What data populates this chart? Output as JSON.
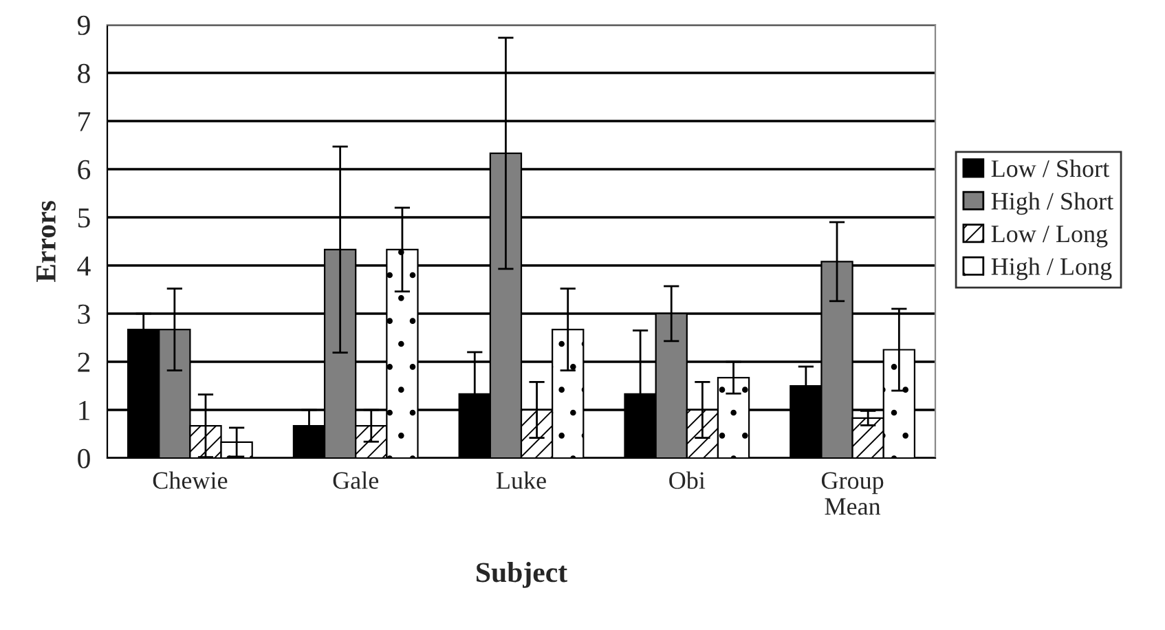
{
  "chart_data": {
    "type": "bar",
    "xlabel": "Subject",
    "ylabel": "Errors",
    "categories": [
      "Chewie",
      "Gale",
      "Luke",
      "Obi",
      "Group\nMean"
    ],
    "series": [
      {
        "name": "Low / Short",
        "color": "#000000",
        "values": [
          2.67,
          0.67,
          1.33,
          1.33,
          1.5
        ],
        "errors": [
          0.33,
          0.33,
          0.87,
          1.32,
          0.4
        ]
      },
      {
        "name": "High / Short",
        "color": "#808080",
        "values": [
          2.67,
          4.33,
          6.33,
          3.0,
          4.08
        ],
        "errors": [
          0.85,
          2.14,
          2.4,
          0.57,
          0.82
        ]
      },
      {
        "name": "Low / Long",
        "color": "#ffffff",
        "values": [
          0.67,
          0.67,
          1.0,
          1.0,
          0.83
        ],
        "errors": [
          0.65,
          0.33,
          0.58,
          0.58,
          0.15
        ]
      },
      {
        "name": "High / Long",
        "color": "#ffffff",
        "values": [
          0.33,
          4.33,
          2.67,
          1.67,
          2.25
        ],
        "errors": [
          0.3,
          0.87,
          0.85,
          0.33,
          0.85
        ]
      }
    ],
    "ylim": [
      0,
      9
    ],
    "yticks": [
      0,
      1,
      2,
      3,
      4,
      5,
      6,
      7,
      8,
      9
    ],
    "grid": "y",
    "legend": "right"
  }
}
